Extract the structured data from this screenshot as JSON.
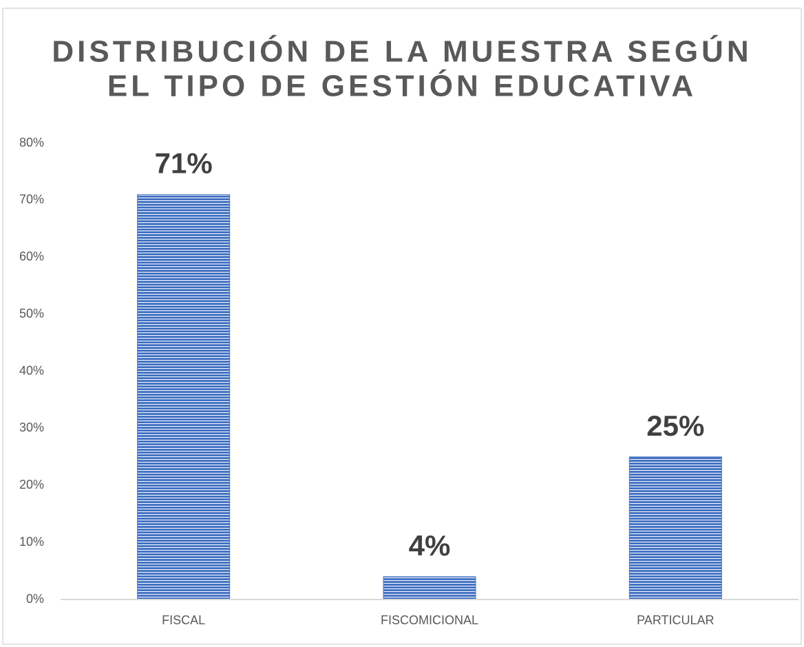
{
  "chart_data": {
    "type": "bar",
    "title": [
      "DISTRIBUCIÓN DE LA MUESTRA SEGÚN",
      "EL TIPO DE GESTIÓN EDUCATIVA"
    ],
    "categories": [
      "FISCAL",
      "FISCOMICIONAL",
      "PARTICULAR"
    ],
    "values": [
      71,
      4,
      25
    ],
    "value_labels": [
      "71%",
      "4%",
      "25%"
    ],
    "color": "#4472c4",
    "ylim": [
      0,
      80
    ],
    "yticks": [
      {
        "value": 0,
        "label": "0%"
      },
      {
        "value": 10,
        "label": "10%"
      },
      {
        "value": 20,
        "label": "20%"
      },
      {
        "value": 30,
        "label": "30%"
      },
      {
        "value": 40,
        "label": "40%"
      },
      {
        "value": 50,
        "label": "50%"
      },
      {
        "value": 60,
        "label": "60%"
      },
      {
        "value": 70,
        "label": "70%"
      },
      {
        "value": 80,
        "label": "80%"
      }
    ],
    "grid": false
  }
}
